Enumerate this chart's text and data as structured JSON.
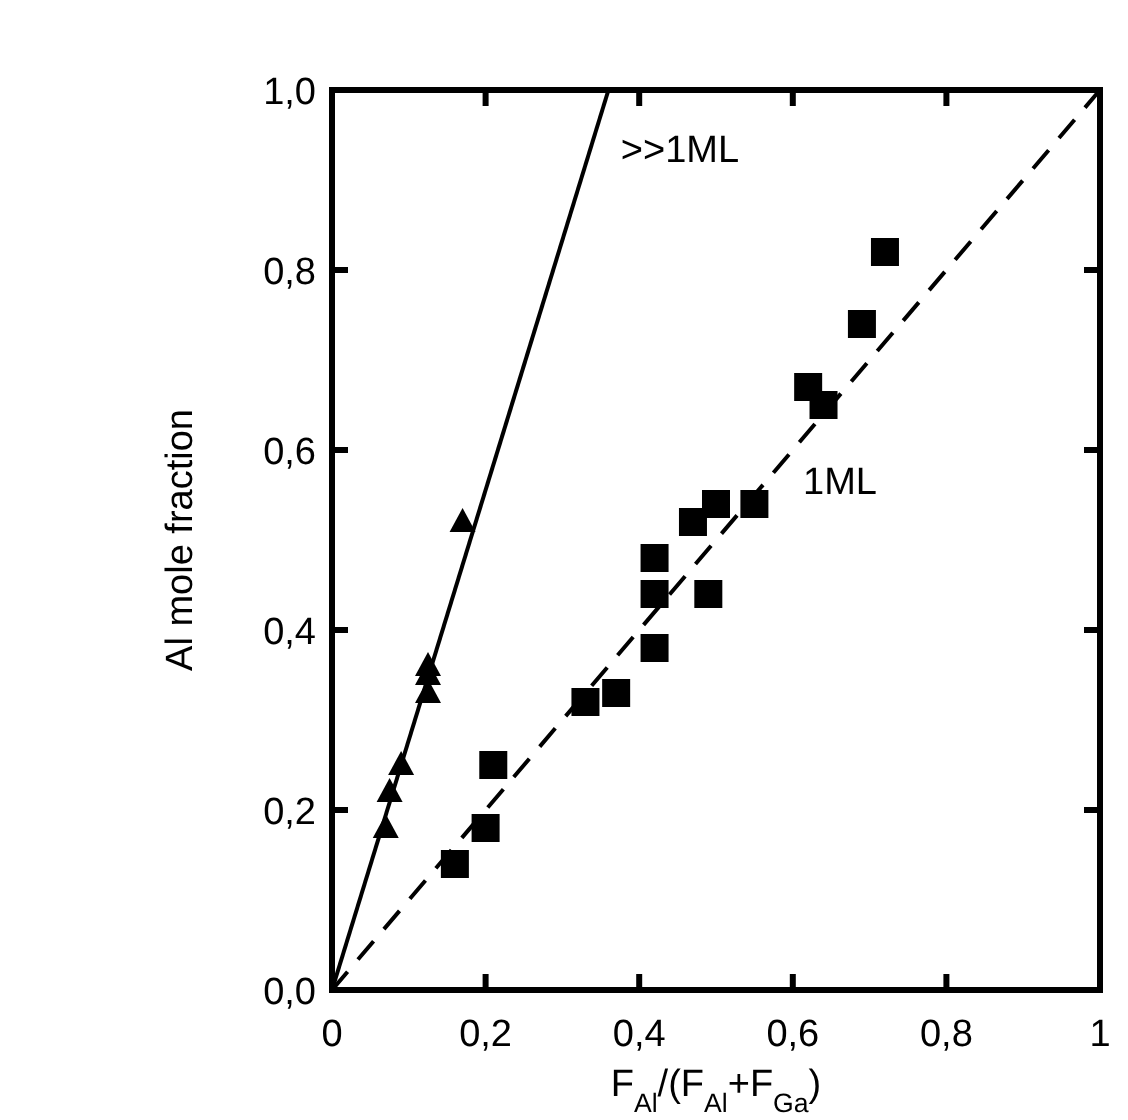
{
  "chart_data": {
    "type": "scatter",
    "xlabel": "F$_{Al}$/(F$_{Al}$+F$_{Ga}$)",
    "ylabel": "Al mole fraction",
    "xlim": [
      0,
      1
    ],
    "ylim": [
      0,
      1
    ],
    "xticks": [
      {
        "value": 0,
        "label": "0"
      },
      {
        "value": 0.2,
        "label": "0,2"
      },
      {
        "value": 0.4,
        "label": "0,4"
      },
      {
        "value": 0.6,
        "label": "0,6"
      },
      {
        "value": 0.8,
        "label": "0,8"
      },
      {
        "value": 1,
        "label": "1"
      }
    ],
    "yticks": [
      {
        "value": 0,
        "label": "0,0"
      },
      {
        "value": 0.2,
        "label": "0,2"
      },
      {
        "value": 0.4,
        "label": "0,4"
      },
      {
        "value": 0.6,
        "label": "0,6"
      },
      {
        "value": 0.8,
        "label": "0,8"
      },
      {
        "value": 1,
        "label": "1,0"
      }
    ],
    "grid": false,
    "series": [
      {
        "marker": "triangle",
        "color": "#000000",
        "x": [
          0.07,
          0.075,
          0.09,
          0.125,
          0.125,
          0.125,
          0.17
        ],
        "values": [
          0.18,
          0.22,
          0.25,
          0.33,
          0.35,
          0.36,
          0.52
        ]
      },
      {
        "marker": "square",
        "color": "#000000",
        "x": [
          0.16,
          0.2,
          0.21,
          0.33,
          0.37,
          0.42,
          0.42,
          0.42,
          0.47,
          0.49,
          0.5,
          0.55,
          0.62,
          0.64,
          0.69,
          0.72
        ],
        "values": [
          0.14,
          0.18,
          0.25,
          0.32,
          0.33,
          0.38,
          0.44,
          0.48,
          0.52,
          0.44,
          0.54,
          0.54,
          0.67,
          0.65,
          0.74,
          0.82
        ]
      },
      {
        "type": "line",
        "line_style": "solid",
        "marker": "none",
        "color": "#000000",
        "x": [
          0,
          0.36
        ],
        "values": [
          0,
          1
        ]
      },
      {
        "type": "line",
        "line_style": "dashed",
        "marker": "none",
        "color": "#000000",
        "x": [
          0,
          1
        ],
        "values": [
          0,
          1
        ]
      }
    ],
    "annotations": [
      ">>1ML",
      "1ML"
    ]
  }
}
